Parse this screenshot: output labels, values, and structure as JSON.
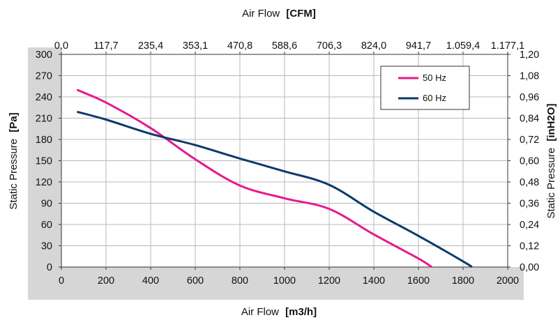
{
  "chart_data": {
    "type": "line",
    "x_bottom": {
      "label": "Air Flow",
      "unit": "[m3/h]",
      "range": [
        0,
        2000
      ],
      "ticks": [
        "0",
        "200",
        "400",
        "600",
        "800",
        "1000",
        "1200",
        "1400",
        "1600",
        "1800",
        "2000"
      ]
    },
    "x_top": {
      "label": "Air Flow",
      "unit": "[CFM]",
      "ticks": [
        "0,0",
        "117,7",
        "235,4",
        "353,1",
        "470,8",
        "588,6",
        "706,3",
        "824,0",
        "941,7",
        "1.059,4",
        "1.177,1"
      ]
    },
    "y_left": {
      "label": "Static Pressure",
      "unit": "[Pa]",
      "range": [
        0,
        300
      ],
      "ticks": [
        "0",
        "30",
        "60",
        "90",
        "120",
        "150",
        "180",
        "210",
        "240",
        "270",
        "300"
      ]
    },
    "y_right": {
      "label": "Static Pressure",
      "unit": "[inH2O]",
      "ticks": [
        "0,00",
        "0,12",
        "0,24",
        "0,36",
        "0,48",
        "0,60",
        "0,72",
        "0,84",
        "0,96",
        "1,08",
        "1,20"
      ]
    },
    "grid": true,
    "legend_position": "top-right",
    "series": [
      {
        "name": "50 Hz",
        "color": "#e6198c",
        "x": [
          70,
          200,
          400,
          600,
          800,
          1000,
          1200,
          1400,
          1600,
          1660
        ],
        "y": [
          250,
          232,
          196,
          152,
          115,
          97,
          82,
          46,
          12,
          0
        ]
      },
      {
        "name": "60 Hz",
        "color": "#0a3a6b",
        "x": [
          70,
          200,
          400,
          600,
          800,
          1000,
          1200,
          1400,
          1600,
          1800,
          1840
        ],
        "y": [
          219,
          208,
          188,
          172,
          153,
          135,
          116,
          78,
          44,
          8,
          0
        ]
      }
    ]
  }
}
